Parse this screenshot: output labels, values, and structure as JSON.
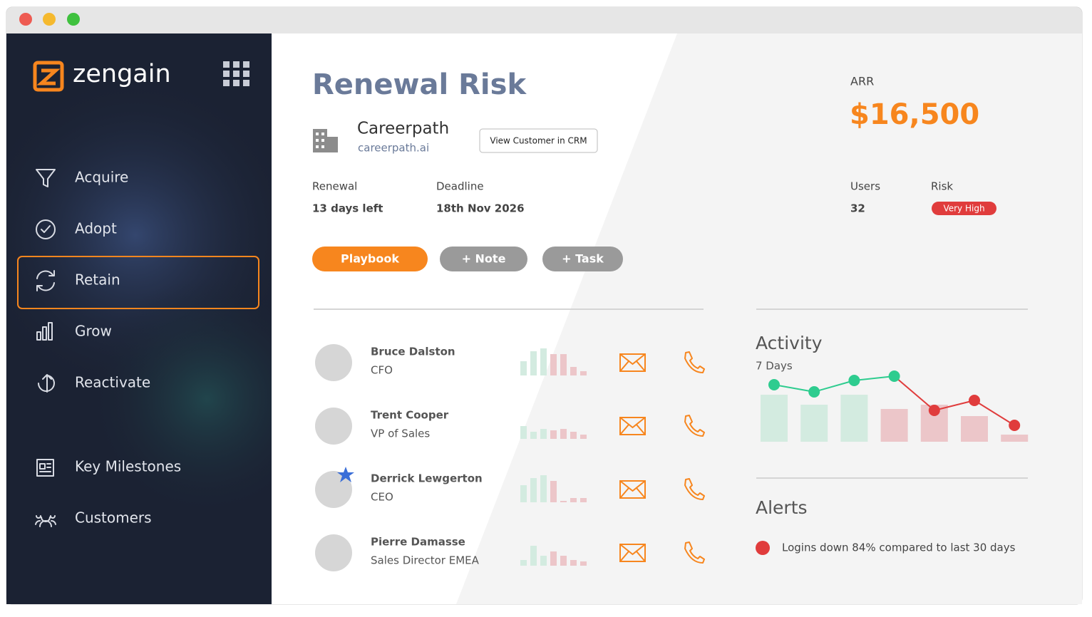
{
  "brand": "zengain",
  "nav": [
    {
      "label": "Acquire",
      "selected": false
    },
    {
      "label": "Adopt",
      "selected": false
    },
    {
      "label": "Retain",
      "selected": true
    },
    {
      "label": "Grow",
      "selected": false
    },
    {
      "label": "Reactivate",
      "selected": false
    },
    {
      "label": "Key Milestones",
      "selected": false
    },
    {
      "label": "Customers",
      "selected": false
    }
  ],
  "header": {
    "title": "Renewal Risk",
    "customer": "Careerpath",
    "domain": "careerpath.ai",
    "crm_button": "View Customer in CRM",
    "arr_label": "ARR",
    "arr_value": "$16,500",
    "renewal_label": "Renewal",
    "renewal_value": "13 days left",
    "deadline_label": "Deadline",
    "deadline_value": "18th Nov 2026",
    "users_label": "Users",
    "users_value": 32,
    "risk_label": "Risk",
    "risk_value": "Very High"
  },
  "buttons": [
    "Playbook",
    "+ Note",
    "+ Task"
  ],
  "contacts": [
    {
      "name": "Bruce Dalston",
      "role": "CFO",
      "starred": false,
      "activity": [
        20,
        34,
        38,
        30,
        30,
        12,
        6
      ]
    },
    {
      "name": "Trent Cooper",
      "role": "VP of Sales",
      "starred": false,
      "activity": [
        18,
        10,
        14,
        12,
        14,
        10,
        6
      ]
    },
    {
      "name": "Derrick Lewgerton",
      "role": "CEO",
      "starred": true,
      "activity": [
        24,
        34,
        38,
        30,
        2,
        6,
        6
      ]
    },
    {
      "name": "Pierre Damasse",
      "role": "Sales Director EMEA",
      "starred": false,
      "activity": [
        8,
        28,
        14,
        20,
        14,
        8,
        6
      ]
    }
  ],
  "activity": {
    "title": "Activity",
    "subtitle": "7 Days",
    "bars": [
      66,
      52,
      66,
      46,
      52,
      36,
      10
    ],
    "line": [
      80,
      70,
      86,
      92,
      44,
      58,
      23
    ]
  },
  "alerts": {
    "title": "Alerts",
    "items": [
      "Logins down 84% compared to last 30 days"
    ]
  }
}
